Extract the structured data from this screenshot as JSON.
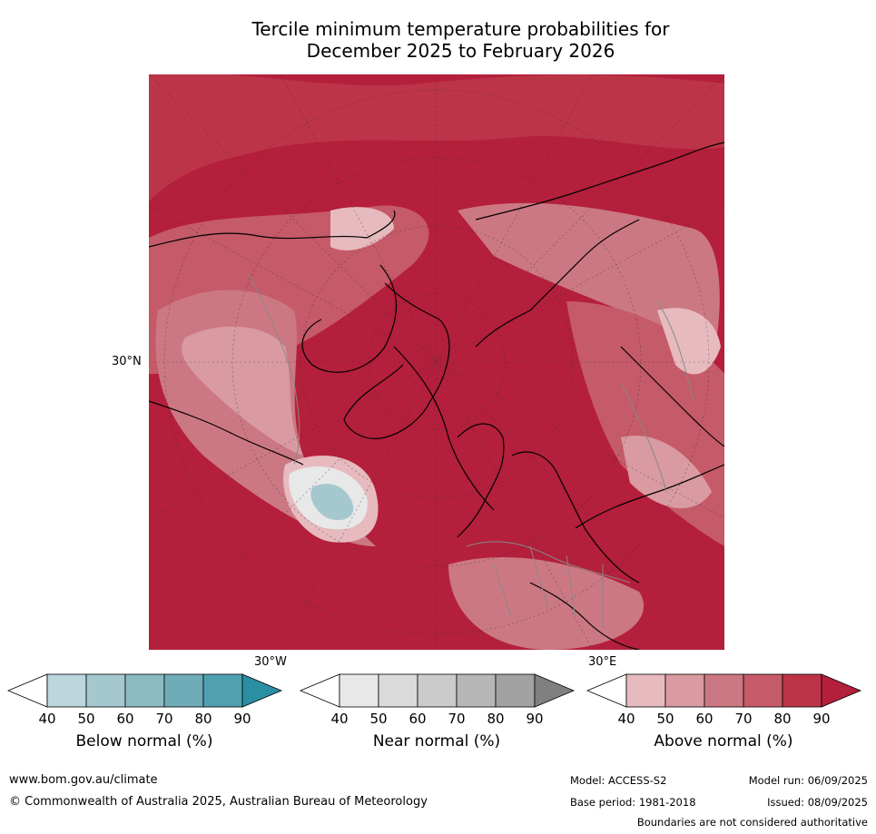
{
  "title_line1": "Tercile minimum temperature probabilities for",
  "title_line2": "December 2025 to February 2026",
  "map": {
    "lat_label": "30°N",
    "lon_labels": [
      "30°W",
      "30°E"
    ]
  },
  "colorbars": [
    {
      "label": "Below normal (%)",
      "ticks": [
        "40",
        "50",
        "60",
        "70",
        "80",
        "90"
      ],
      "colors": [
        "#ffffff",
        "#bcd6dc",
        "#a5c8cf",
        "#8cbac3",
        "#70acb8",
        "#4fa1b0",
        "#2c8ea3"
      ]
    },
    {
      "label": "Near normal (%)",
      "ticks": [
        "40",
        "50",
        "60",
        "70",
        "80",
        "90"
      ],
      "colors": [
        "#ffffff",
        "#e8e8e8",
        "#dadada",
        "#cbcbcb",
        "#b7b7b7",
        "#a2a2a2",
        "#808080"
      ]
    },
    {
      "label": "Above normal (%)",
      "ticks": [
        "40",
        "50",
        "60",
        "70",
        "80",
        "90"
      ],
      "colors": [
        "#ffffff",
        "#e6babe",
        "#d99aa2",
        "#cc7882",
        "#c55a68",
        "#bc3448",
        "#b41f3b"
      ]
    }
  ],
  "footer": {
    "website": "www.bom.gov.au/climate",
    "copyright": "© Commonwealth of Australia 2025, Australian Bureau of Meteorology",
    "model": "Model: ACCESS-S2",
    "base_period": "Base period: 1981-2018",
    "model_run": "Model run: 06/09/2025",
    "issued": "Issued: 08/09/2025",
    "disclaimer": "Boundaries are not considered authoritative"
  }
}
